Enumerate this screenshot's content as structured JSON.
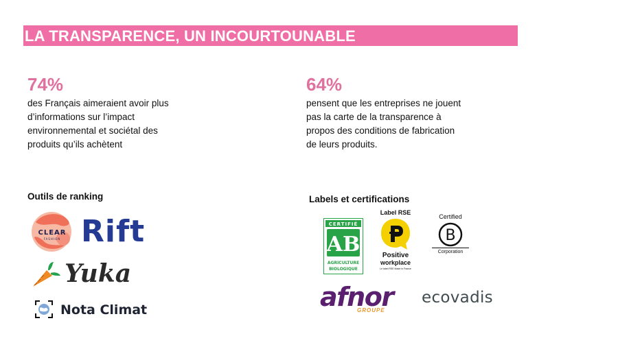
{
  "title": "LA TRANSPARENCE, UN INCOURTOUNABLE",
  "colors": {
    "accent": "#ef6ea6",
    "percent": "#e0719f",
    "rift_blue": "#243a93",
    "afnor_purple": "#5a1f6e",
    "ab_green": "#29a347",
    "positive_yellow": "#f4d000"
  },
  "stats": [
    {
      "value": "74%",
      "lines": [
        "des Français aimeraient avoir plus",
        "d’informations sur l’impact",
        "environnemental et sociétal des",
        "produits qu’ils achètent"
      ]
    },
    {
      "value": "64%",
      "lines": [
        "pensent que les entreprises ne jouent",
        "pas la carte de la transparence à",
        "propos des conditions de fabrication",
        "de leurs produits."
      ]
    }
  ],
  "ranking": {
    "heading": "Outils de ranking",
    "clear_fashion": {
      "line1": "CLEAR",
      "line2": "FASHION"
    },
    "rift": "Rift",
    "yuka": "Yuka",
    "nota_climat": "Nota Climat"
  },
  "labels": {
    "heading": "Labels et certifications",
    "ab": {
      "top": "CERTIFIÉ",
      "mark": "AB",
      "bottom1": "AGRICULTURE",
      "bottom2": "BIOLOGIQUE"
    },
    "positive": {
      "top": "Label RSE",
      "name1": "Positive",
      "name2": "workplace",
      "small": "Le label RSE Made in France"
    },
    "bcorp": {
      "top": "Certified",
      "mark": "B",
      "bottom": "Corporation"
    },
    "afnor": {
      "main": "afnor",
      "sub": "GROUPE"
    },
    "ecovadis": "ecovadis"
  }
}
